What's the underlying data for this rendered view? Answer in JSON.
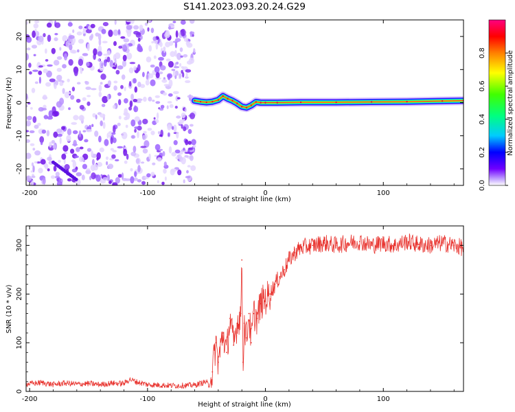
{
  "title": "S141.2023.093.20.24.G29",
  "chart_data": [
    {
      "type": "heatmap",
      "name": "spectrogram",
      "title": "",
      "xlabel": "Height of straight line (km)",
      "ylabel": "Frequency (Hz)",
      "xlim": [
        -203,
        168
      ],
      "ylim": [
        -25,
        25
      ],
      "xticks": [
        -200,
        -100,
        0,
        100
      ],
      "yticks": [
        -20,
        -10,
        0,
        10,
        20
      ],
      "xtick_labels": [
        "-200",
        "-100",
        "0",
        "100"
      ],
      "ytick_labels": [
        "-20",
        "-10",
        "0",
        "10",
        "20"
      ],
      "noise_region_km": [
        -203,
        -60
      ],
      "signal_region_km": [
        -60,
        168
      ],
      "ridge": {
        "x": [
          -60,
          -55,
          -50,
          -45,
          -40,
          -36,
          -32,
          -28,
          -24,
          -20,
          -16,
          -12,
          -8,
          -4,
          0,
          10,
          30,
          60,
          90,
          120,
          150,
          168
        ],
        "y": [
          0.6,
          0.3,
          0.1,
          0.3,
          0.8,
          2.0,
          1.2,
          0.6,
          -0.2,
          -1.2,
          -1.5,
          -0.8,
          0.2,
          0.0,
          0.0,
          0.0,
          0.1,
          0.1,
          0.2,
          0.3,
          0.5,
          0.6
        ]
      },
      "colorbar": {
        "label": "Normalized spectral amplitude",
        "range": [
          0.0,
          1.0
        ],
        "ticks": [
          0.0,
          0.2,
          0.4,
          0.6,
          0.8
        ],
        "tick_labels": [
          "0.0",
          "0.2",
          "0.4",
          "0.6",
          "0.8"
        ]
      }
    },
    {
      "type": "line",
      "name": "snr",
      "title": "",
      "xlabel": "Height of straight line (km)",
      "ylabel": "SNR (10 * v/v)",
      "xlim": [
        -203,
        168
      ],
      "ylim": [
        0,
        340
      ],
      "xticks": [
        -200,
        -100,
        0,
        100
      ],
      "yticks": [
        0,
        100,
        200,
        300
      ],
      "xtick_labels": [
        "-200",
        "-100",
        "0",
        "100"
      ],
      "ytick_labels": [
        "0",
        "100",
        "200",
        "300"
      ],
      "color": "#e8322d",
      "series": [
        {
          "name": "SNR",
          "x": [
            -203,
            -190,
            -180,
            -170,
            -160,
            -150,
            -140,
            -130,
            -120,
            -115,
            -110,
            -100,
            -90,
            -80,
            -70,
            -60,
            -50,
            -48,
            -45,
            -42,
            -40,
            -36,
            -33,
            -30,
            -27,
            -24,
            -21,
            -20,
            -19,
            -18,
            -16,
            -14,
            -12,
            -10,
            -7,
            -4,
            0,
            4,
            8,
            12,
            16,
            20,
            25,
            30,
            40,
            50,
            60,
            70,
            80,
            90,
            100,
            110,
            120,
            130,
            140,
            150,
            160,
            168
          ],
          "y": [
            15,
            18,
            14,
            17,
            15,
            16,
            14,
            17,
            16,
            25,
            20,
            14,
            13,
            12,
            12,
            13,
            20,
            10,
            40,
            100,
            60,
            120,
            80,
            150,
            95,
            140,
            160,
            270,
            60,
            140,
            110,
            160,
            100,
            160,
            150,
            180,
            190,
            200,
            220,
            235,
            250,
            270,
            285,
            295,
            300,
            305,
            300,
            305,
            308,
            300,
            305,
            300,
            308,
            302,
            300,
            305,
            300,
            295
          ]
        }
      ]
    }
  ]
}
